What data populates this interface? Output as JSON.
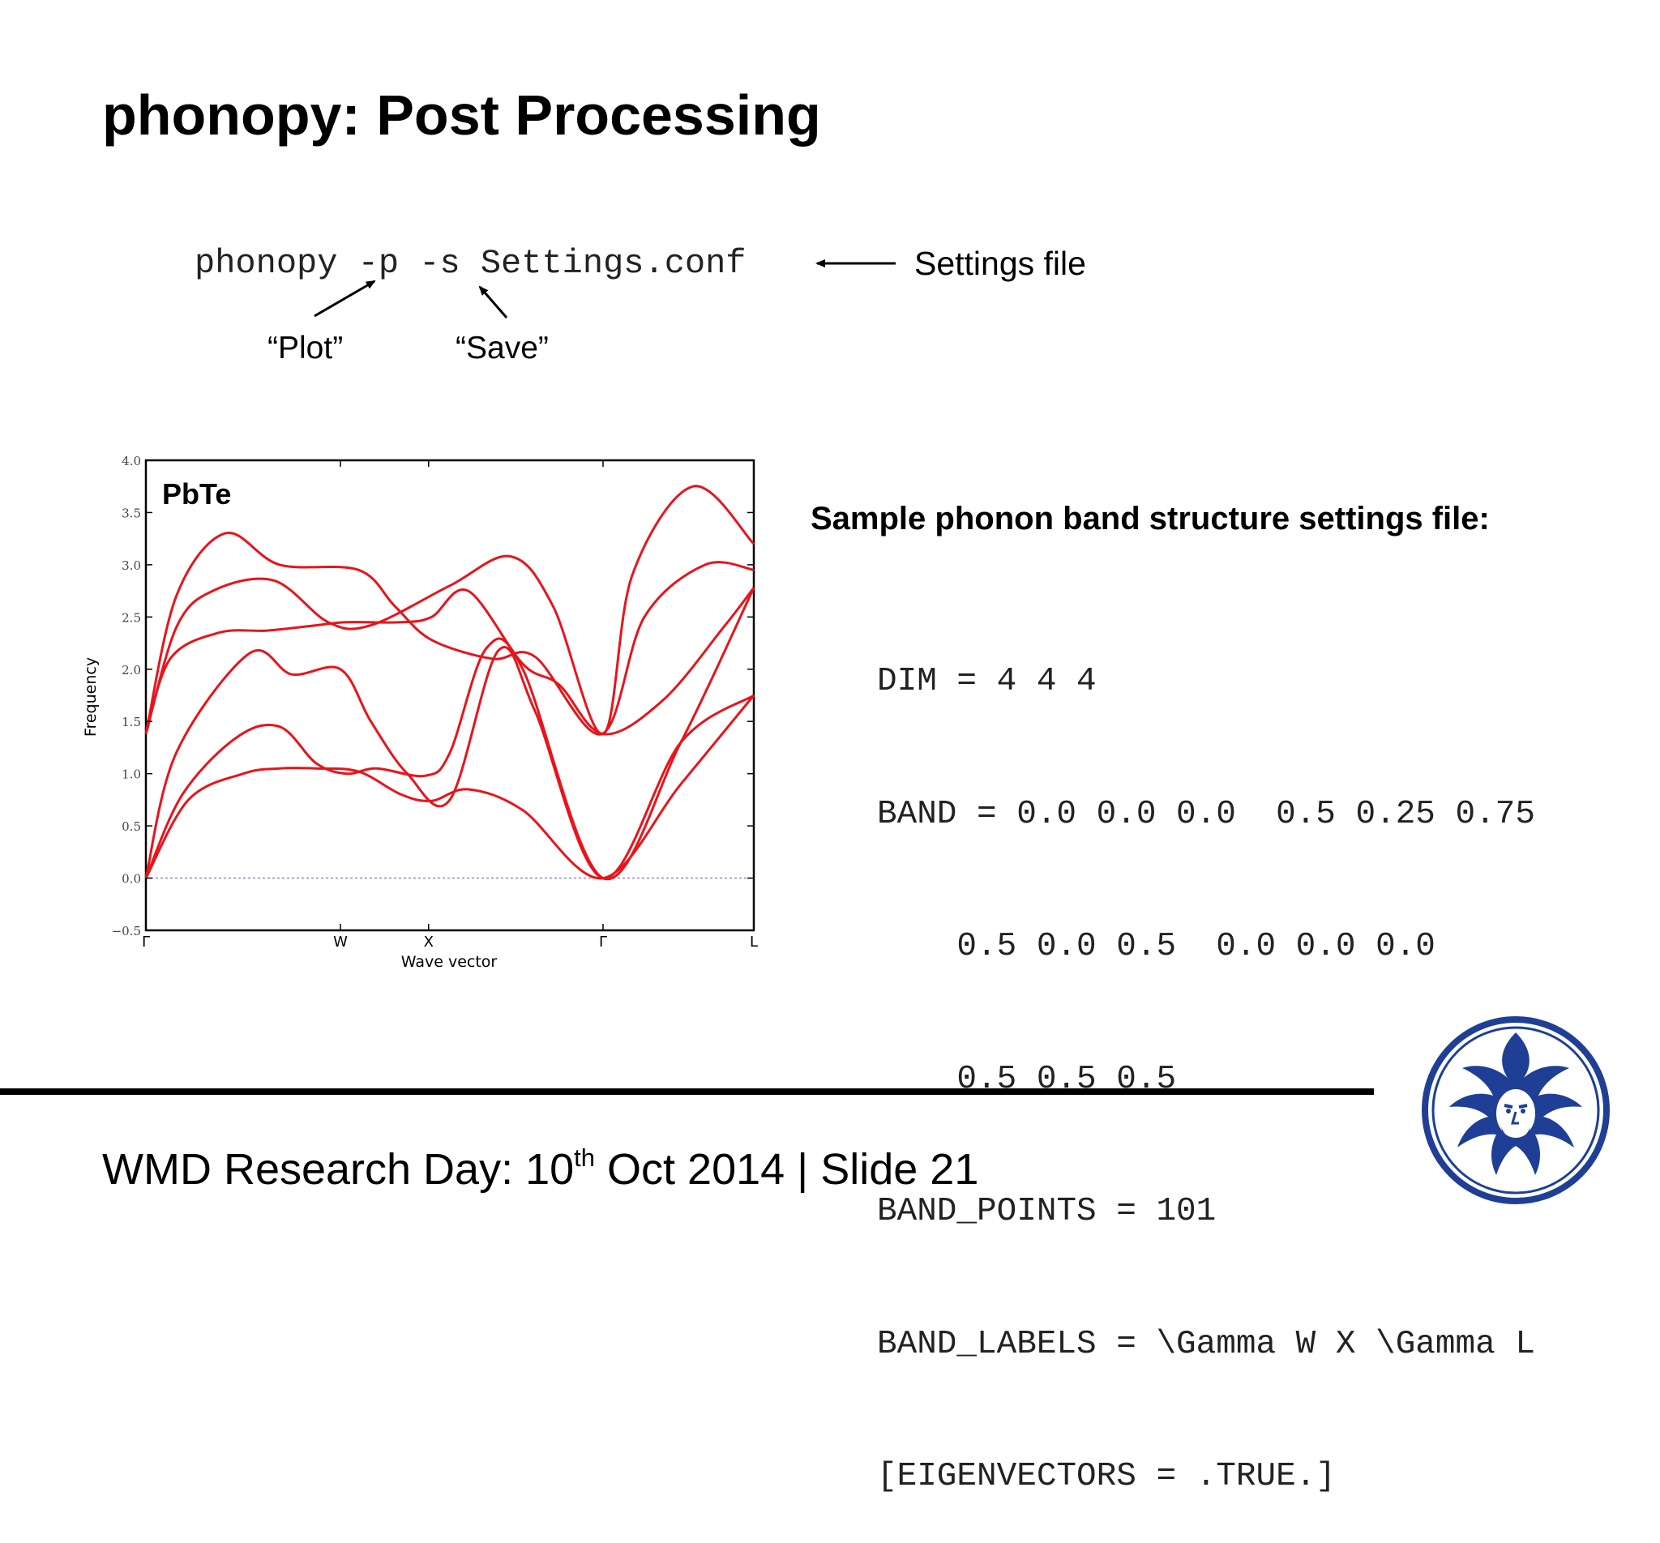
{
  "slide": {
    "title": "phonopy: Post Processing",
    "command": {
      "text": "phonopy -p -s Settings.conf",
      "settings_label": "Settings file",
      "plot_label": "“Plot”",
      "save_label": "“Save”"
    },
    "sample_heading": "Sample phonon band structure settings file:",
    "settings_file_lines": [
      "DIM = 4 4 4",
      "BAND = 0.0 0.0 0.0  0.5 0.25 0.75",
      "    0.5 0.0 0.5  0.0 0.0 0.0",
      "    0.5 0.5 0.5",
      "BAND_POINTS = 101",
      "BAND_LABELS = \\Gamma W X \\Gamma L",
      "[EIGENVECTORS = .TRUE.]"
    ],
    "footer": {
      "prefix": "WMD Research Day: 10",
      "superscript": "th",
      "suffix": " Oct 2014 | Slide 21"
    }
  },
  "colors": {
    "band": "#e8141b",
    "zero_line": "#8a8ad8",
    "text": "#000000",
    "logo": "#1f3f97"
  },
  "icons": [
    "arrow-left-icon",
    "arrow-up-right-icon",
    "arrow-up-left-icon",
    "university-seal-logo"
  ],
  "chart_data": {
    "type": "line",
    "title": "PbTe",
    "xlabel": "Wave vector",
    "ylabel": "Frequency",
    "ylim": [
      -0.5,
      4.0
    ],
    "yticks": [
      "−0.5",
      "0.0",
      "0.5",
      "1.0",
      "1.5",
      "2.0",
      "2.5",
      "3.0",
      "3.5",
      "4.0"
    ],
    "ytick_values": [
      -0.5,
      0,
      0.5,
      1.0,
      1.5,
      2.0,
      2.5,
      3.0,
      3.5,
      4.0
    ],
    "xlim": [
      0,
      1
    ],
    "high_symmetry_points": [
      {
        "label": "Γ",
        "x": 0.0
      },
      {
        "label": "W",
        "x": 0.32
      },
      {
        "label": "X",
        "x": 0.465
      },
      {
        "label": "Γ",
        "x": 0.752
      },
      {
        "label": "L",
        "x": 1.0
      }
    ],
    "grid": false,
    "legend": "none",
    "series": [
      {
        "values": [
          [
            0,
            1.38
          ],
          [
            0.05,
            2.7
          ],
          [
            0.13,
            3.3
          ],
          [
            0.22,
            3.0
          ],
          [
            0.35,
            2.95
          ],
          [
            0.41,
            2.6
          ],
          [
            0.47,
            2.28
          ],
          [
            0.57,
            2.1
          ],
          [
            0.64,
            2.12
          ],
          [
            0.75,
            1.38
          ],
          [
            0.82,
            2.5
          ],
          [
            0.92,
            3.0
          ],
          [
            1.0,
            2.95
          ]
        ]
      },
      {
        "values": [
          [
            0,
            1.38
          ],
          [
            0.05,
            2.4
          ],
          [
            0.11,
            2.75
          ],
          [
            0.21,
            2.85
          ],
          [
            0.3,
            2.45
          ],
          [
            0.37,
            2.42
          ],
          [
            0.5,
            2.8
          ],
          [
            0.6,
            3.08
          ],
          [
            0.67,
            2.6
          ],
          [
            0.752,
            1.38
          ],
          [
            0.8,
            2.9
          ],
          [
            0.9,
            3.75
          ],
          [
            1.0,
            3.2
          ]
        ]
      },
      {
        "values": [
          [
            0,
            1.38
          ],
          [
            0.04,
            2.1
          ],
          [
            0.12,
            2.35
          ],
          [
            0.2,
            2.37
          ],
          [
            0.28,
            2.42
          ],
          [
            0.33,
            2.45
          ],
          [
            0.42,
            2.45
          ],
          [
            0.47,
            2.5
          ],
          [
            0.53,
            2.75
          ],
          [
            0.62,
            2.05
          ],
          [
            0.68,
            1.85
          ],
          [
            0.752,
            1.38
          ],
          [
            0.85,
            1.7
          ],
          [
            0.95,
            2.4
          ],
          [
            1.0,
            2.78
          ]
        ]
      },
      {
        "values": [
          [
            0,
            0.0
          ],
          [
            0.05,
            1.2
          ],
          [
            0.17,
            2.15
          ],
          [
            0.24,
            1.95
          ],
          [
            0.32,
            2.0
          ],
          [
            0.37,
            1.5
          ],
          [
            0.43,
            1.0
          ],
          [
            0.5,
            0.75
          ],
          [
            0.58,
            2.18
          ],
          [
            0.64,
            1.6
          ],
          [
            0.752,
            0.0
          ],
          [
            0.88,
            1.3
          ],
          [
            1.0,
            1.75
          ]
        ]
      },
      {
        "values": [
          [
            0,
            0.0
          ],
          [
            0.06,
            0.8
          ],
          [
            0.15,
            1.35
          ],
          [
            0.22,
            1.45
          ],
          [
            0.28,
            1.1
          ],
          [
            0.33,
            1.0
          ],
          [
            0.38,
            1.05
          ],
          [
            0.46,
            0.98
          ],
          [
            0.5,
            1.2
          ],
          [
            0.56,
            2.2
          ],
          [
            0.62,
            2.0
          ],
          [
            0.752,
            0.0
          ],
          [
            0.88,
            1.3
          ],
          [
            1.0,
            2.78
          ]
        ]
      },
      {
        "values": [
          [
            0,
            0.0
          ],
          [
            0.07,
            0.75
          ],
          [
            0.16,
            1.0
          ],
          [
            0.22,
            1.05
          ],
          [
            0.28,
            1.05
          ],
          [
            0.35,
            1.02
          ],
          [
            0.42,
            0.8
          ],
          [
            0.47,
            0.74
          ],
          [
            0.53,
            0.85
          ],
          [
            0.62,
            0.65
          ],
          [
            0.752,
            0.0
          ],
          [
            0.88,
            0.9
          ],
          [
            1.0,
            1.75
          ]
        ]
      }
    ]
  }
}
